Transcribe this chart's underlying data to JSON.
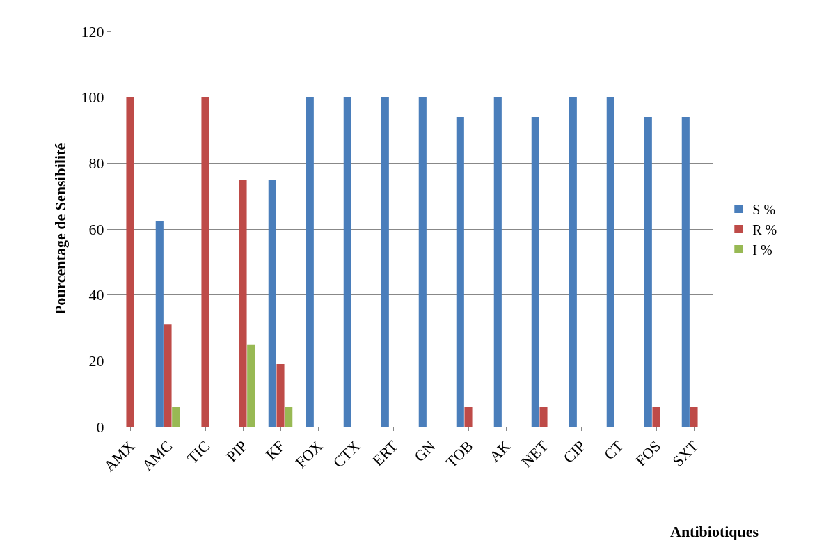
{
  "chart_data": {
    "type": "bar",
    "xlabel": "Antibiotiques",
    "ylabel": "Pourcentage de Sensibilité",
    "categories": [
      "AMX",
      "AMC",
      "TIC",
      "PIP",
      "KF",
      "FOX",
      "CTX",
      "ERT",
      "GN",
      "TOB",
      "AK",
      "NET",
      "CIP",
      "CT",
      "FOS",
      "SXT"
    ],
    "series": [
      {
        "name": "S %",
        "color": "#4a7ebb",
        "values": [
          null,
          62.5,
          null,
          null,
          75,
          100,
          100,
          100,
          100,
          94,
          100,
          94,
          100,
          100,
          94,
          94
        ]
      },
      {
        "name": "R %",
        "color": "#be4b48",
        "values": [
          100,
          31,
          100,
          75,
          19,
          null,
          null,
          null,
          null,
          6,
          null,
          6,
          null,
          null,
          6,
          6
        ]
      },
      {
        "name": "I %",
        "color": "#98b954",
        "values": [
          null,
          6,
          null,
          25,
          6,
          null,
          null,
          null,
          null,
          null,
          null,
          null,
          null,
          null,
          null,
          null
        ]
      }
    ],
    "ylim": [
      0,
      120
    ],
    "yticks": [
      0,
      20,
      40,
      60,
      80,
      100,
      120
    ],
    "grid": "y",
    "legend": "right"
  }
}
